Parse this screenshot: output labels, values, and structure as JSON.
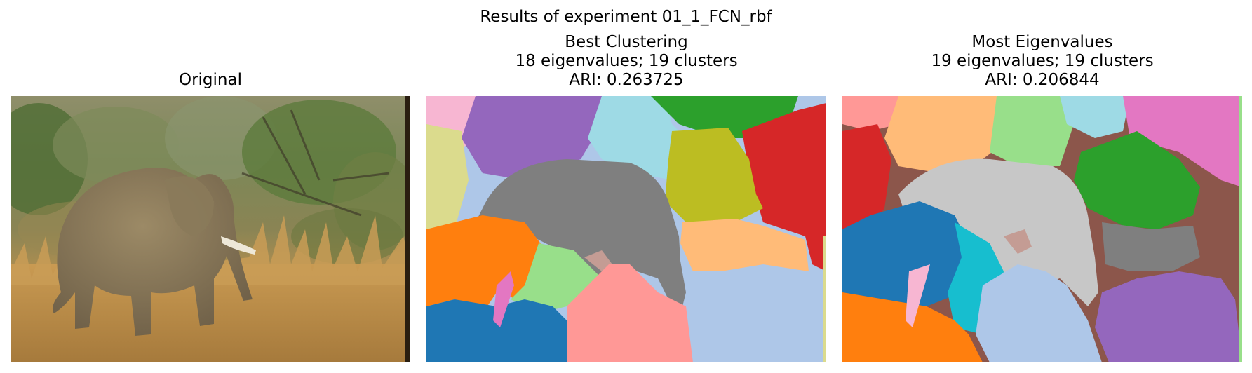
{
  "figure": {
    "suptitle": "Results of experiment 01_1_FCN_rbf"
  },
  "panels": [
    {
      "title_lines": [
        "Original"
      ],
      "image": "elephant-photo"
    },
    {
      "title_lines": [
        "Best Clustering",
        "18 eigenvalues; 19 clusters",
        "ARI: 0.263725"
      ],
      "image": "segmentation-map"
    },
    {
      "title_lines": [
        "Most Eigenvalues",
        "19 eigenvalues; 19 clusters",
        "ARI: 0.206844"
      ],
      "image": "segmentation-map"
    }
  ],
  "colors": {
    "tab_blue": "#1f77b4",
    "tab_orange": "#ff7f0e",
    "tab_green": "#2ca02c",
    "tab_red": "#d62728",
    "tab_purple": "#9467bd",
    "tab_brown": "#8c564b",
    "tab_pink": "#e377c2",
    "tab_gray": "#7f7f7f",
    "tab_olive": "#bcbd22",
    "tab_cyan": "#17becf",
    "light_blue": "#aec7e8",
    "light_orange": "#ffbb78",
    "light_green": "#98df8a",
    "light_red": "#ff9896",
    "light_purple": "#c5b0d5",
    "light_brown": "#c49c94",
    "light_pink": "#f7b6d2",
    "light_gray": "#c7c7c7",
    "light_olive": "#dbdb8d",
    "light_cyan": "#9edae5"
  }
}
